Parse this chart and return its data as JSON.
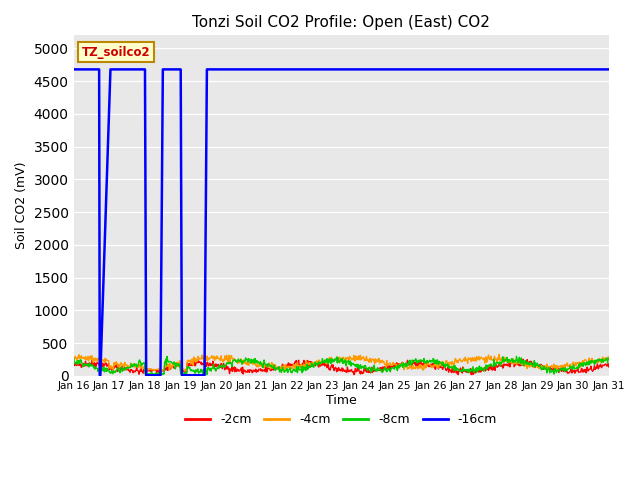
{
  "title": "Tonzi Soil CO2 Profile: Open (East) CO2",
  "ylabel": "Soil CO2 (mV)",
  "xlabel": "Time",
  "legend_label": "TZ_soilco2",
  "ylim": [
    0,
    5200
  ],
  "yticks": [
    0,
    500,
    1000,
    1500,
    2000,
    2500,
    3000,
    3500,
    4000,
    4500,
    5000
  ],
  "series_labels": [
    "-2cm",
    "-4cm",
    "-8cm",
    "-16cm"
  ],
  "series_colors": [
    "#ff0000",
    "#ff9900",
    "#00cc00",
    "#0000ff"
  ],
  "background_color": "#e8e8e8",
  "n_points": 900,
  "x_start": 16.0,
  "x_end": 31.0,
  "xtick_positions": [
    16,
    17,
    18,
    19,
    20,
    21,
    22,
    23,
    24,
    25,
    26,
    27,
    28,
    29,
    30,
    31
  ],
  "xtick_labels": [
    "Jan 16",
    "Jan 17",
    "Jan 18",
    "Jan 19",
    "Jan 20",
    "Jan 21",
    "Jan 22",
    "Jan 23",
    "Jan 24",
    "Jan 25",
    "Jan 26",
    "Jan 27",
    "Jan 28",
    "Jan 29",
    "Jan 30",
    "Jan 31"
  ],
  "blue_flat_value": 4680,
  "blue_dip1_start": 16.73,
  "blue_dip1_bottom_start": 16.76,
  "blue_dip1_bottom_end": 16.76,
  "blue_dip1_end": 17.05,
  "blue_dip2_start": 18.0,
  "blue_dip2_bottom_start": 18.05,
  "blue_dip2_bottom_end": 18.45,
  "blue_dip2_end": 18.52,
  "blue_dip3_start": 19.0,
  "blue_dip3_bottom_start": 19.05,
  "blue_dip3_bottom_end": 19.67,
  "blue_dip3_end": 19.75
}
